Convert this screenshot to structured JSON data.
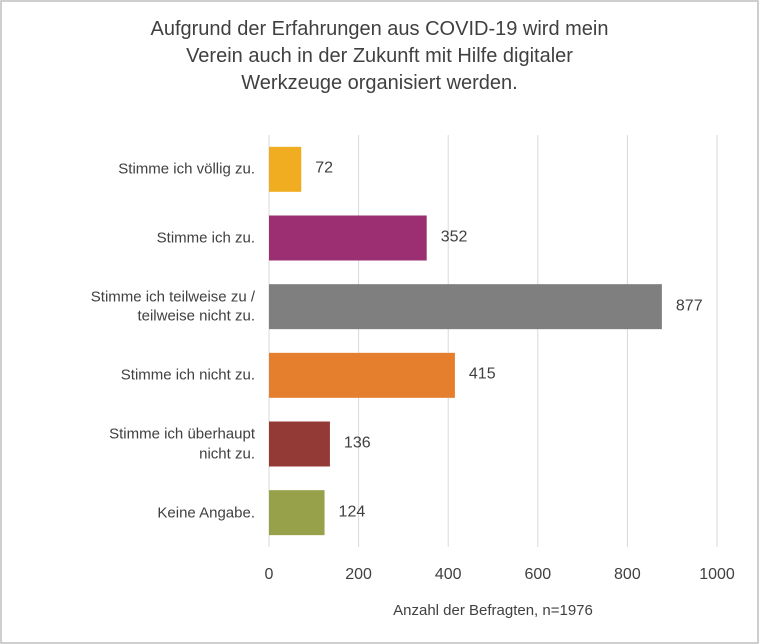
{
  "chart_data": {
    "type": "bar",
    "orientation": "horizontal",
    "title": "Aufgrund der Erfahrungen aus COVID-19 wird mein\nVerein auch in der Zukunft mit Hilfe digitaler\nWerkzeuge organisiert werden.",
    "categories": [
      "Stimme ich völlig zu.",
      "Stimme ich zu.",
      "Stimme ich teilweise zu /\nteilweise nicht zu.",
      "Stimme ich nicht zu.",
      "Stimme ich überhaupt\nnicht zu.",
      "Keine Angabe."
    ],
    "values": [
      72,
      352,
      877,
      415,
      136,
      124
    ],
    "colors": [
      "#f0ad22",
      "#9b2f72",
      "#7f7f7f",
      "#e57f2e",
      "#933a37",
      "#97a14a"
    ],
    "xlabel": "Anzahl der Befragten, n=1976",
    "xlim": [
      0,
      1000
    ],
    "xticks": [
      0,
      200,
      400,
      600,
      800,
      1000
    ],
    "grid": true
  }
}
